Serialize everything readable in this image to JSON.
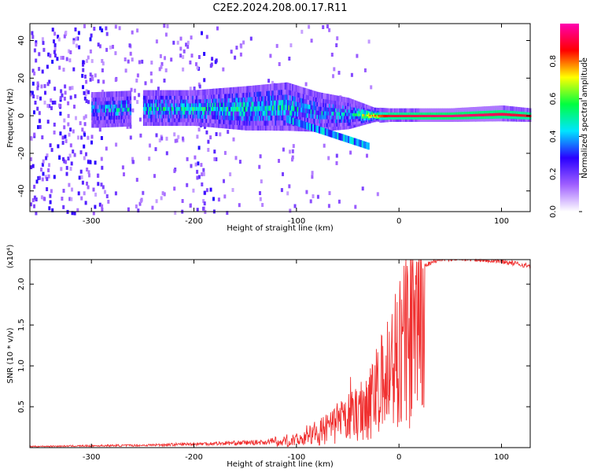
{
  "title": "C2E2.2024.208.00.17.R11",
  "chart_data": [
    {
      "type": "heatmap",
      "title": "C2E2.2024.208.00.17.R11",
      "xlabel": "Height of straight line (km)",
      "ylabel": "Frequency (Hz)",
      "xlim": [
        -360,
        128
      ],
      "ylim": [
        -51,
        49
      ],
      "xticks": [
        -300,
        -200,
        -100,
        0,
        100
      ],
      "xtick_labels": [
        "-300",
        "-200",
        "-100",
        "0",
        "100"
      ],
      "yticks": [
        -40,
        -20,
        0,
        20,
        40
      ],
      "ytick_labels": [
        "-40",
        "-20",
        "0",
        "20",
        "40"
      ],
      "colorbar": {
        "label": "Normalized spectral amplitude",
        "range": [
          0,
          1
        ],
        "ticks": [
          0.0,
          0.2,
          0.4,
          0.6,
          0.8
        ],
        "tick_labels": [
          "0.0",
          "0.2",
          "0.4",
          "0.6",
          "0.8"
        ],
        "colors": [
          "#ffffff",
          "#a060ff",
          "#2a00ff",
          "#00e5ff",
          "#00ff40",
          "#ffff00",
          "#ff0000",
          "#ff00b0"
        ]
      },
      "band": {
        "x": [
          -295,
          -250,
          -200,
          -150,
          -110,
          -80,
          -50,
          -25,
          -10,
          0,
          50,
          100,
          128
        ],
        "center": [
          4,
          5,
          5,
          5,
          6,
          3,
          2,
          1,
          1,
          1,
          1,
          2,
          1
        ],
        "width": [
          8,
          8,
          8,
          10,
          11,
          9,
          7,
          3,
          2.5,
          2.5,
          2.5,
          3,
          2.5
        ],
        "intensity": [
          0.35,
          0.4,
          0.45,
          0.45,
          0.45,
          0.35,
          0.4,
          0.75,
          0.9,
          0.9,
          0.95,
          0.92,
          0.88
        ]
      }
    },
    {
      "type": "line",
      "xlabel": "Height of straight line (km)",
      "ylabel": "SNR (10 * v/v)",
      "scale_label": "(x10⁴)",
      "xlim": [
        -360,
        128
      ],
      "ylim": [
        0,
        23000
      ],
      "xticks": [
        -300,
        -200,
        -100,
        0,
        100
      ],
      "xtick_labels": [
        "-300",
        "-200",
        "-100",
        "0",
        "100"
      ],
      "yticks": [
        5000,
        10000,
        15000,
        20000
      ],
      "ytick_labels": [
        "0.5",
        "1.0",
        "1.5",
        "2.0"
      ],
      "color": "#f03030",
      "envelope": {
        "x": [
          -360,
          -250,
          -130,
          -100,
          -80,
          -60,
          -40,
          -20,
          -12,
          -5,
          0,
          10,
          20,
          30,
          40,
          60,
          100,
          128
        ],
        "y": [
          150,
          300,
          700,
          1500,
          2800,
          4500,
          7000,
          11000,
          14000,
          17000,
          19000,
          21000,
          22000,
          22600,
          23000,
          23200,
          22800,
          22200
        ]
      }
    }
  ]
}
